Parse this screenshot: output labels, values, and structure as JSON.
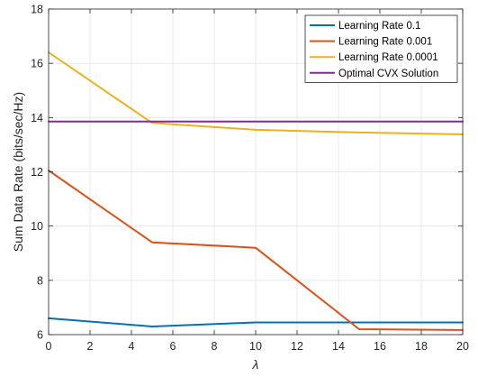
{
  "chart_data": {
    "type": "line",
    "xlabel": "λ",
    "ylabel": "Sum Data Rate (bits/sec/Hz)",
    "xlim": [
      0,
      20
    ],
    "ylim": [
      6,
      18
    ],
    "xticks": [
      0,
      2,
      4,
      6,
      8,
      10,
      12,
      14,
      16,
      18,
      20
    ],
    "yticks": [
      6,
      8,
      10,
      12,
      14,
      16,
      18
    ],
    "grid": true,
    "legend_position": "top-right",
    "series": [
      {
        "name": "Learning Rate 0.1",
        "color": "#0072BD",
        "x": [
          0,
          5,
          10,
          15,
          20
        ],
        "values": [
          6.6,
          6.3,
          6.45,
          6.45,
          6.45
        ]
      },
      {
        "name": "Learning Rate 0.001",
        "color": "#D95319",
        "x": [
          0,
          5,
          10,
          15,
          20
        ],
        "values": [
          12.05,
          9.4,
          9.2,
          6.2,
          6.17
        ]
      },
      {
        "name": "Learning Rate 0.0001",
        "color": "#EDB120",
        "x": [
          0,
          5,
          10,
          15,
          20
        ],
        "values": [
          16.4,
          13.8,
          13.55,
          13.45,
          13.38
        ]
      },
      {
        "name": "Optimal CVX Solution",
        "color": "#7E2F8E",
        "x": [
          0,
          5,
          10,
          15,
          20
        ],
        "values": [
          13.85,
          13.85,
          13.85,
          13.85,
          13.85
        ]
      }
    ]
  }
}
